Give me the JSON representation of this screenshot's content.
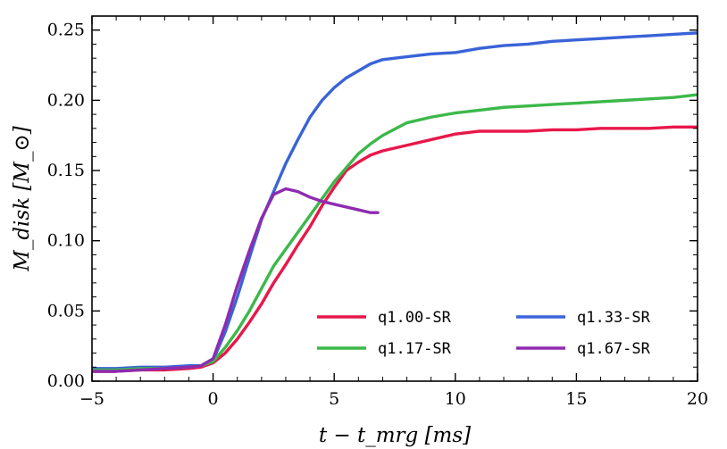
{
  "chart_data": {
    "type": "line",
    "title": "",
    "xlabel": "t − t_mrg [ms]",
    "ylabel": "M_disk [M_⊙]",
    "xlim": [
      -5,
      20
    ],
    "ylim": [
      0,
      0.26
    ],
    "xticks": [
      -5,
      0,
      5,
      10,
      15,
      20
    ],
    "xtick_labels": [
      "−5",
      "0",
      "5",
      "10",
      "15",
      "20"
    ],
    "yticks": [
      0,
      0.05,
      0.1,
      0.15,
      0.2,
      0.25
    ],
    "ytick_labels": [
      "0.00",
      "0.05",
      "0.10",
      "0.15",
      "0.20",
      "0.25"
    ],
    "grid": false,
    "legend_position": "lower-right",
    "series": [
      {
        "name": "q1.00-SR",
        "color": "#e8174a",
        "x": [
          -5,
          -4,
          -3,
          -2,
          -1,
          -0.5,
          0,
          0.5,
          1,
          1.5,
          2,
          2.5,
          3,
          3.5,
          4,
          4.5,
          5,
          5.5,
          6,
          6.5,
          7,
          7.5,
          8,
          9,
          10,
          11,
          12,
          13,
          14,
          15,
          16,
          17,
          18,
          19,
          20
        ],
        "y": [
          0.007,
          0.007,
          0.008,
          0.008,
          0.009,
          0.01,
          0.013,
          0.02,
          0.03,
          0.042,
          0.055,
          0.07,
          0.083,
          0.097,
          0.11,
          0.125,
          0.138,
          0.15,
          0.156,
          0.161,
          0.164,
          0.166,
          0.168,
          0.172,
          0.176,
          0.178,
          0.178,
          0.178,
          0.179,
          0.179,
          0.18,
          0.18,
          0.18,
          0.181,
          0.181
        ]
      },
      {
        "name": "q1.33-SR",
        "color": "#3a63d7",
        "x": [
          -5,
          -4,
          -3,
          -2,
          -1,
          -0.5,
          0,
          0.5,
          1,
          1.5,
          2,
          2.5,
          3,
          3.5,
          4,
          4.5,
          5,
          5.5,
          6,
          6.5,
          7,
          8,
          9,
          10,
          11,
          12,
          13,
          14,
          15,
          16,
          17,
          18,
          19,
          20
        ],
        "y": [
          0.009,
          0.009,
          0.01,
          0.01,
          0.011,
          0.011,
          0.015,
          0.035,
          0.06,
          0.088,
          0.115,
          0.135,
          0.155,
          0.172,
          0.188,
          0.2,
          0.209,
          0.216,
          0.221,
          0.226,
          0.229,
          0.231,
          0.233,
          0.234,
          0.237,
          0.239,
          0.24,
          0.242,
          0.243,
          0.244,
          0.245,
          0.246,
          0.247,
          0.248
        ]
      },
      {
        "name": "q1.17-SR",
        "color": "#3cb84a",
        "x": [
          -5,
          -4,
          -3,
          -2,
          -1,
          -0.5,
          0,
          0.5,
          1,
          1.5,
          2,
          2.5,
          3,
          3.5,
          4,
          4.5,
          5,
          5.5,
          6,
          6.5,
          7,
          8,
          9,
          10,
          11,
          12,
          13,
          14,
          15,
          16,
          17,
          18,
          19,
          20
        ],
        "y": [
          0.008,
          0.008,
          0.009,
          0.009,
          0.01,
          0.011,
          0.014,
          0.024,
          0.036,
          0.05,
          0.066,
          0.082,
          0.094,
          0.106,
          0.118,
          0.13,
          0.142,
          0.152,
          0.162,
          0.169,
          0.175,
          0.184,
          0.188,
          0.191,
          0.193,
          0.195,
          0.196,
          0.197,
          0.198,
          0.199,
          0.2,
          0.201,
          0.202,
          0.204
        ]
      },
      {
        "name": "q1.67-SR",
        "color": "#8e2bb0",
        "x": [
          -5,
          -4,
          -3,
          -2,
          -1,
          -0.5,
          0,
          0.5,
          1,
          1.5,
          2,
          2.5,
          3,
          3.5,
          4,
          4.5,
          5,
          5.5,
          6,
          6.5,
          6.8
        ],
        "y": [
          0.007,
          0.007,
          0.008,
          0.009,
          0.01,
          0.011,
          0.016,
          0.04,
          0.068,
          0.093,
          0.116,
          0.133,
          0.137,
          0.135,
          0.131,
          0.128,
          0.126,
          0.124,
          0.122,
          0.12,
          0.12
        ]
      }
    ],
    "legend_order": [
      0,
      1,
      2,
      3
    ]
  }
}
